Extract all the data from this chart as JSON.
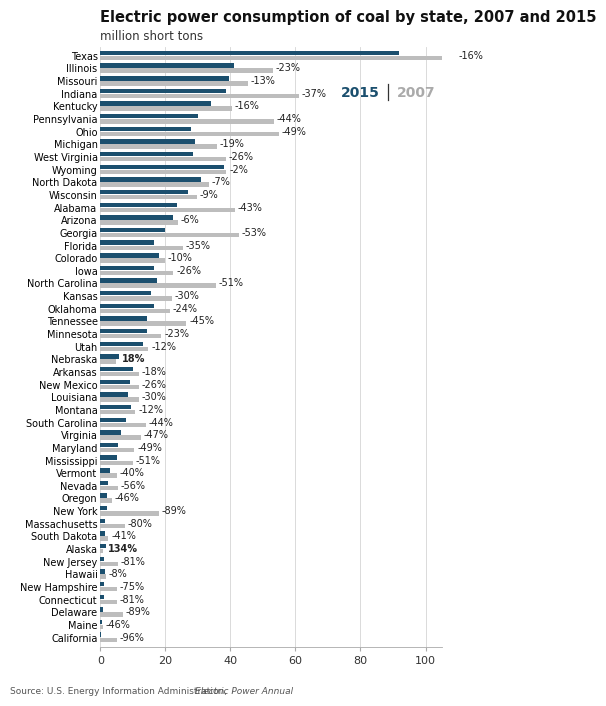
{
  "title": "Electric power consumption of coal by state, 2007 and 2015",
  "subtitle": "million short tons",
  "bar_color_2015": "#1b4f6e",
  "bar_color_2007": "#bdbdbd",
  "xlim_max": 105,
  "xticks": [
    0,
    20,
    40,
    60,
    80,
    100
  ],
  "states": [
    "Texas",
    "Illinois",
    "Missouri",
    "Indiana",
    "Kentucky",
    "Pennsylvania",
    "Ohio",
    "Michigan",
    "West Virginia",
    "Wyoming",
    "North Dakota",
    "Wisconsin",
    "Alabama",
    "Arizona",
    "Georgia",
    "Florida",
    "Colorado",
    "Iowa",
    "North Carolina",
    "Kansas",
    "Oklahoma",
    "Tennessee",
    "Minnesota",
    "Utah",
    "Nebraska",
    "Arkansas",
    "New Mexico",
    "Louisiana",
    "Montana",
    "South Carolina",
    "Virginia",
    "Maryland",
    "Mississippi",
    "Vermont",
    "Nevada",
    "Oregon",
    "New York",
    "Massachusetts",
    "South Dakota",
    "Alaska",
    "New Jersey",
    "Hawaii",
    "New Hampshire",
    "Connecticut",
    "Delaware",
    "Maine",
    "California"
  ],
  "val_2015": [
    92.0,
    41.0,
    39.5,
    38.5,
    34.0,
    30.0,
    28.0,
    29.0,
    28.5,
    38.0,
    31.0,
    27.0,
    23.5,
    22.5,
    20.0,
    16.5,
    18.0,
    16.5,
    17.5,
    15.5,
    16.5,
    14.5,
    14.5,
    13.0,
    5.8,
    10.0,
    9.0,
    8.5,
    9.5,
    8.0,
    6.5,
    5.5,
    5.0,
    3.0,
    2.3,
    2.0,
    2.0,
    1.5,
    1.5,
    1.6,
    1.0,
    1.5,
    1.2,
    1.0,
    0.8,
    0.5,
    0.2
  ],
  "val_2007": [
    109.5,
    53.0,
    45.5,
    61.0,
    40.5,
    53.5,
    55.0,
    35.8,
    38.5,
    38.8,
    33.5,
    29.8,
    41.5,
    24.0,
    42.5,
    25.5,
    20.0,
    22.5,
    35.5,
    22.0,
    21.5,
    26.5,
    18.8,
    14.8,
    4.9,
    12.0,
    12.0,
    12.0,
    10.8,
    14.0,
    12.5,
    10.5,
    10.0,
    5.0,
    5.3,
    3.7,
    18.0,
    7.5,
    2.5,
    0.7,
    5.5,
    1.6,
    5.0,
    5.0,
    7.0,
    0.9,
    5.0
  ],
  "pct_labels": [
    "-16%",
    "-23%",
    "-13%",
    "-37%",
    "-16%",
    "-44%",
    "-49%",
    "-19%",
    "-26%",
    "-2%",
    "-7%",
    "-9%",
    "-43%",
    "-6%",
    "-53%",
    "-35%",
    "-10%",
    "-26%",
    "-51%",
    "-30%",
    "-24%",
    "-45%",
    "-23%",
    "-12%",
    "18%",
    "-18%",
    "-26%",
    "-30%",
    "-12%",
    "-44%",
    "-47%",
    "-49%",
    "-51%",
    "-40%",
    "-56%",
    "-46%",
    "-89%",
    "-80%",
    "-41%",
    "134%",
    "-81%",
    "-8%",
    "-75%",
    "-81%",
    "-89%",
    "-46%",
    "-96%"
  ],
  "pct_bold": [
    false,
    false,
    false,
    false,
    false,
    false,
    false,
    false,
    false,
    false,
    false,
    false,
    false,
    false,
    false,
    false,
    false,
    false,
    false,
    false,
    false,
    false,
    false,
    false,
    true,
    false,
    false,
    false,
    false,
    false,
    false,
    false,
    false,
    false,
    false,
    false,
    false,
    false,
    false,
    true,
    false,
    false,
    false,
    false,
    false,
    false,
    false
  ],
  "background_color": "#ffffff",
  "title_fontsize": 10.5,
  "subtitle_fontsize": 8.5,
  "label_fontsize": 7.0,
  "tick_fontsize": 8.0,
  "source_fontsize": 6.5,
  "legend_2015_color": "#1b4f6e",
  "legend_2007_color": "#aaaaaa",
  "legend_fontsize": 10
}
